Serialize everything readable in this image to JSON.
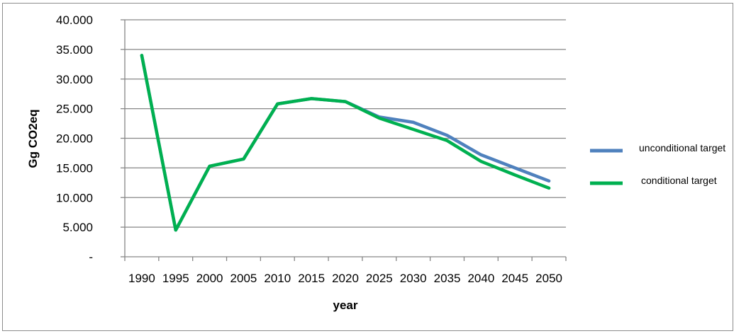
{
  "chart_data": {
    "type": "line",
    "title": "",
    "xlabel": "year",
    "ylabel": "Gg CO2eq",
    "categories": [
      "1990",
      "1995",
      "2000",
      "2005",
      "2010",
      "2015",
      "2020",
      "2025",
      "2030",
      "2035",
      "2040",
      "2045",
      "2050"
    ],
    "y_tick_labels": [
      "-",
      "5.000",
      "10.000",
      "15.000",
      "20.000",
      "25.000",
      "30.000",
      "35.000",
      "40.000"
    ],
    "ylim": [
      0,
      40000
    ],
    "grid": true,
    "legend_position": "right",
    "series": [
      {
        "name": "unconditional target",
        "color": "#4F81BD",
        "values": [
          34000,
          4500,
          15300,
          16500,
          25800,
          26700,
          26200,
          23600,
          22700,
          20500,
          17200,
          15000,
          12800
        ]
      },
      {
        "name": "conditional target",
        "color": "#00B050",
        "values": [
          34000,
          4500,
          15300,
          16500,
          25800,
          26700,
          26200,
          23400,
          21500,
          19600,
          16100,
          13800,
          11600
        ]
      }
    ]
  }
}
